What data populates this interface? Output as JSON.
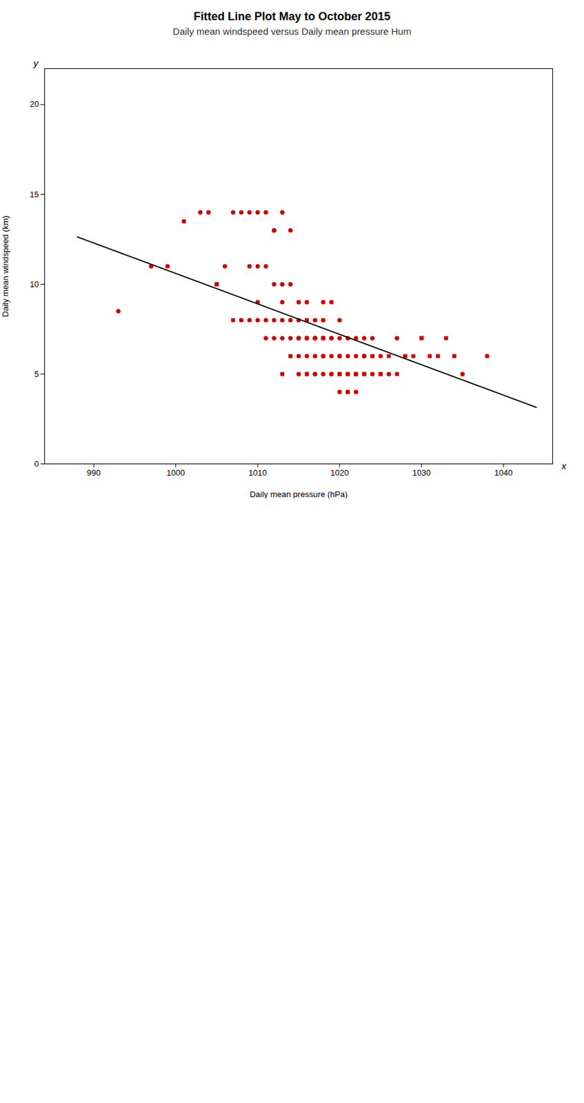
{
  "chart_data": {
    "type": "scatter",
    "title": "Fitted Line Plot May to October 2015",
    "subtitle": "Daily mean windspeed versus Daily mean pressure Hum",
    "xlabel": "Daily mean pressure (hPa)",
    "ylabel": "Daily mean windspeed (km)",
    "annotations": [
      "x",
      "y"
    ],
    "xlim": [
      984,
      1046
    ],
    "ylim": [
      0,
      22
    ],
    "xticks": [
      990,
      1000,
      1010,
      1020,
      1030,
      1040
    ],
    "yticks": [
      0,
      5,
      10,
      15,
      20
    ],
    "grid": false,
    "series": [
      {
        "type": "scatter",
        "marker": "circle",
        "color": "#cc0000",
        "x": [
          993,
          997,
          999,
          1001,
          1003,
          1004,
          1006,
          1007,
          1008,
          1008,
          1009,
          1009,
          1009,
          1010,
          1010,
          1010,
          1010,
          1011,
          1011,
          1011,
          1011,
          1012,
          1012,
          1012,
          1012,
          1012,
          1013,
          1013,
          1013,
          1013,
          1013,
          1014,
          1014,
          1014,
          1014,
          1015,
          1015,
          1015,
          1015,
          1015,
          1015,
          1016,
          1016,
          1016,
          1017,
          1017,
          1017,
          1017,
          1017,
          1017,
          1017,
          1018,
          1018,
          1018,
          1018,
          1018,
          1019,
          1019,
          1019,
          1019,
          1019,
          1019,
          1020,
          1020,
          1020,
          1020,
          1020,
          1021,
          1021,
          1021,
          1021,
          1022,
          1022,
          1022,
          1022,
          1023,
          1023,
          1023,
          1024,
          1024,
          1025,
          1026,
          1027,
          1035,
          1038
        ],
        "values": [
          8.5,
          11,
          11,
          13.5,
          14,
          14,
          11,
          14,
          14,
          8,
          8,
          11,
          14,
          8,
          9,
          11,
          14,
          7,
          8,
          11,
          14,
          7,
          8,
          10,
          13,
          13,
          7,
          8,
          9,
          10,
          14,
          7,
          8,
          10,
          13,
          5,
          6,
          7,
          7,
          8,
          9,
          6,
          7,
          9,
          5,
          5,
          6,
          7,
          7,
          7,
          8,
          5,
          6,
          7,
          8,
          9,
          5,
          5,
          6,
          7,
          7,
          9,
          4,
          6,
          6,
          7,
          8,
          4,
          5,
          6,
          7,
          4,
          5,
          6,
          7,
          6,
          6,
          7,
          5,
          7,
          6,
          5,
          7,
          5,
          6
        ]
      },
      {
        "type": "scatter",
        "marker": "square",
        "color": "#cc0000",
        "x": [
          1005,
          1005,
          1007,
          1013,
          1014,
          1014,
          1016,
          1016,
          1016,
          1016,
          1016,
          1018,
          1018,
          1018,
          1020,
          1020,
          1021,
          1021,
          1022,
          1022,
          1023,
          1023,
          1024,
          1024,
          1025,
          1025,
          1026,
          1027,
          1028,
          1028,
          1029,
          1030,
          1030,
          1031,
          1032,
          1033,
          1034
        ],
        "values": [
          10,
          10,
          8,
          5,
          6,
          6,
          5,
          5,
          7,
          8,
          8,
          6,
          7,
          7,
          5,
          5,
          4,
          5,
          5,
          5,
          5,
          5,
          6,
          6,
          5,
          5,
          6,
          5,
          6,
          6,
          6,
          7,
          7,
          6,
          6,
          7,
          6
        ]
      },
      {
        "type": "line",
        "color": "#000000",
        "x": [
          988,
          1044
        ],
        "values": [
          12.6328,
          3.1464
        ]
      }
    ]
  }
}
